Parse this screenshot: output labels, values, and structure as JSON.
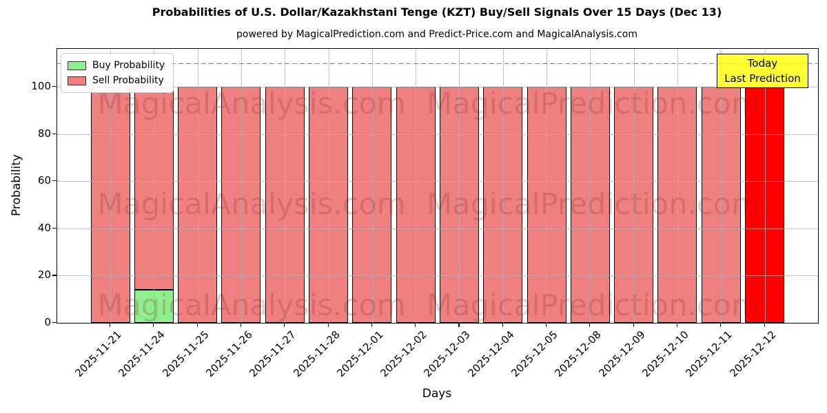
{
  "chart_data": {
    "type": "bar",
    "stacked": true,
    "title": "Probabilities of U.S. Dollar/Kazakhstani Tenge (KZT) Buy/Sell Signals Over 15 Days (Dec 13)",
    "subtitle": "powered by MagicalPrediction.com and Predict-Price.com and MagicalAnalysis.com",
    "xlabel": "Days",
    "ylabel": "Probability",
    "ylim": [
      0,
      116
    ],
    "yticks": [
      0,
      20,
      40,
      60,
      80,
      100
    ],
    "grid": true,
    "legend_position": "upper left",
    "categories": [
      "2025-11-21",
      "2025-11-24",
      "2025-11-25",
      "2025-11-26",
      "2025-11-27",
      "2025-11-28",
      "2025-12-01",
      "2025-12-02",
      "2025-12-03",
      "2025-12-04",
      "2025-12-05",
      "2025-12-08",
      "2025-12-09",
      "2025-12-10",
      "2025-12-11",
      "2025-12-12"
    ],
    "series": [
      {
        "name": "Buy Probability",
        "color": "#90EE90",
        "values": [
          0,
          14,
          0,
          0,
          0,
          0,
          0,
          0,
          0,
          0,
          0,
          0,
          0,
          0,
          0,
          0
        ]
      },
      {
        "name": "Sell Probability",
        "color": "#F08080",
        "values": [
          100,
          86,
          100,
          100,
          100,
          100,
          100,
          100,
          100,
          100,
          100,
          100,
          100,
          100,
          100,
          100
        ]
      }
    ],
    "highlight_bar": {
      "category": "2025-12-12",
      "index": 15,
      "color": "#FF0000"
    },
    "threshold_line": {
      "y": 110,
      "style": "dashed",
      "color": "#7f7f7f"
    },
    "annotation": {
      "line1": "Today",
      "line2": "Last Prediction",
      "bg_color": "#FFFF00",
      "border_color": "#000000"
    },
    "watermarks": [
      {
        "text": "MagicalAnalysis.com"
      },
      {
        "text": "MagicalPrediction.com"
      }
    ]
  }
}
